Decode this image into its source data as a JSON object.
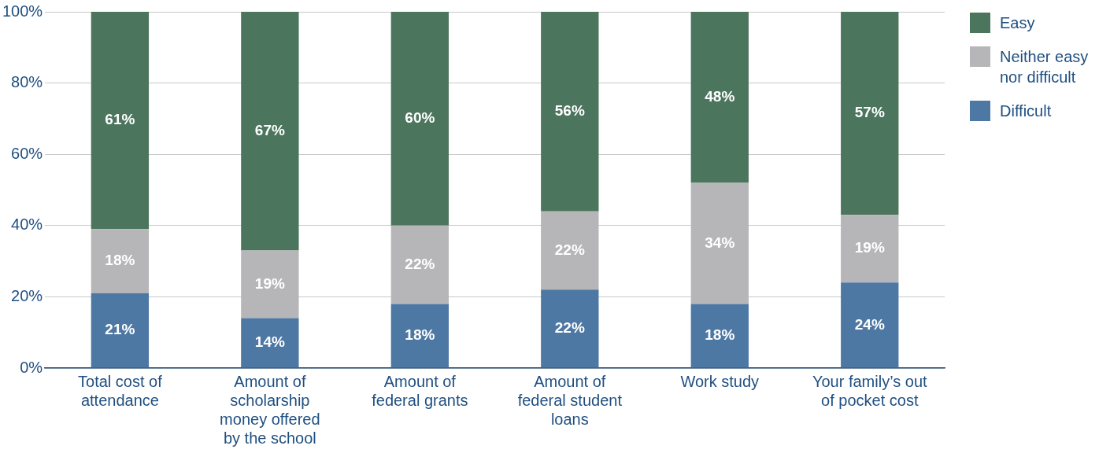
{
  "chart_data": {
    "type": "bar",
    "stacked": true,
    "categories": [
      "Total cost of attendance",
      "Amount of scholarship money offered by the school",
      "Amount of federal grants",
      "Amount of federal student loans",
      "Work study",
      "Your family’s out of pocket cost"
    ],
    "series": [
      {
        "name": "Difficult",
        "color": "#4e78a4",
        "values": [
          21,
          14,
          18,
          22,
          18,
          24
        ],
        "value_labels": [
          "21%",
          "14%",
          "18%",
          "22%",
          "18%",
          "24%"
        ]
      },
      {
        "name": "Neither easy nor difficult",
        "color": "#b6b6b8",
        "values": [
          18,
          19,
          22,
          22,
          34,
          19
        ],
        "value_labels": [
          "18%",
          "19%",
          "22%",
          "22%",
          "34%",
          "19%"
        ]
      },
      {
        "name": "Easy",
        "color": "#4b755d",
        "values": [
          61,
          67,
          60,
          56,
          48,
          57
        ],
        "value_labels": [
          "61%",
          "67%",
          "60%",
          "56%",
          "48%",
          "57%"
        ]
      }
    ],
    "ylim": [
      0,
      100
    ],
    "yticks": [
      {
        "value": 0,
        "label": "0%"
      },
      {
        "value": 20,
        "label": "20%"
      },
      {
        "value": 40,
        "label": "40%"
      },
      {
        "value": 60,
        "label": "60%"
      },
      {
        "value": 80,
        "label": "80%"
      },
      {
        "value": 100,
        "label": "100%"
      }
    ],
    "grid": "y",
    "legend": "right"
  }
}
